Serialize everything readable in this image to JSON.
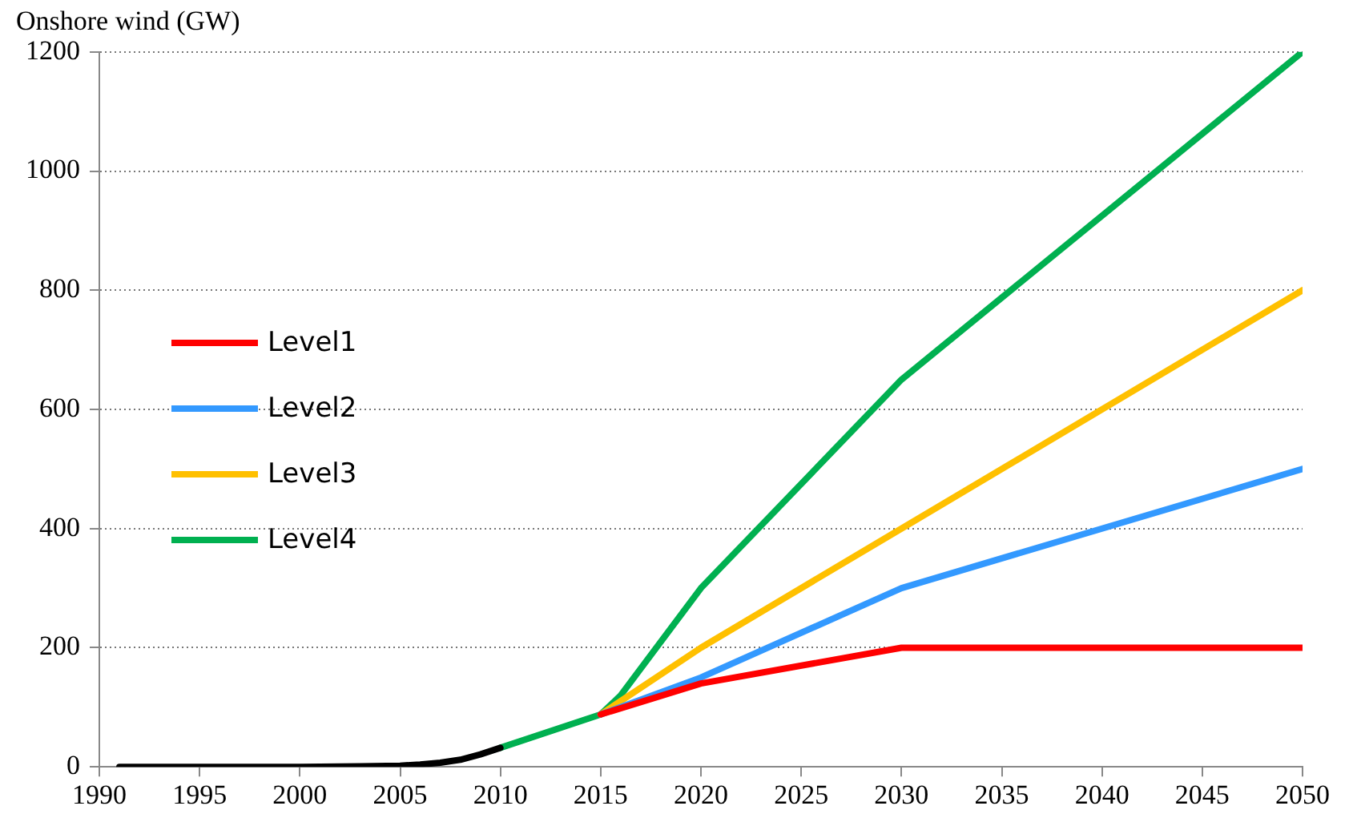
{
  "chart_data": {
    "type": "line",
    "title": "Onshore wind (GW)",
    "xlim": [
      1990,
      2050
    ],
    "xticks": [
      1990,
      1995,
      2000,
      2005,
      2010,
      2015,
      2020,
      2025,
      2030,
      2035,
      2040,
      2045,
      2050
    ],
    "ylim": [
      0,
      1200
    ],
    "yticks": [
      0,
      200,
      400,
      600,
      800,
      1000,
      1200
    ],
    "grid": "y",
    "legend": "left",
    "marker": "none",
    "line_style": "solid",
    "series": [
      {
        "color": "#000000",
        "x": [
          1991,
          1995,
          2000,
          2003,
          2005,
          2006,
          2007,
          2008,
          2009,
          2010
        ],
        "values": [
          0,
          0,
          0,
          1,
          2,
          4,
          7,
          12,
          21,
          32
        ]
      },
      {
        "name": "Level1",
        "color": "#ff0000",
        "x": [
          2015,
          2020,
          2030,
          2050
        ],
        "values": [
          88,
          140,
          200,
          200
        ]
      },
      {
        "name": "Level2",
        "color": "#3399ff",
        "x": [
          2015,
          2020,
          2030,
          2050
        ],
        "values": [
          88,
          150,
          300,
          500
        ]
      },
      {
        "name": "Level3",
        "color": "#ffc000",
        "x": [
          2015,
          2020,
          2030,
          2050
        ],
        "values": [
          88,
          200,
          400,
          800
        ]
      },
      {
        "name": "Level4",
        "color": "#00b050",
        "x": [
          2010,
          2015,
          2016,
          2020,
          2030,
          2050
        ],
        "values": [
          32,
          88,
          120,
          300,
          650,
          1200
        ]
      }
    ]
  }
}
